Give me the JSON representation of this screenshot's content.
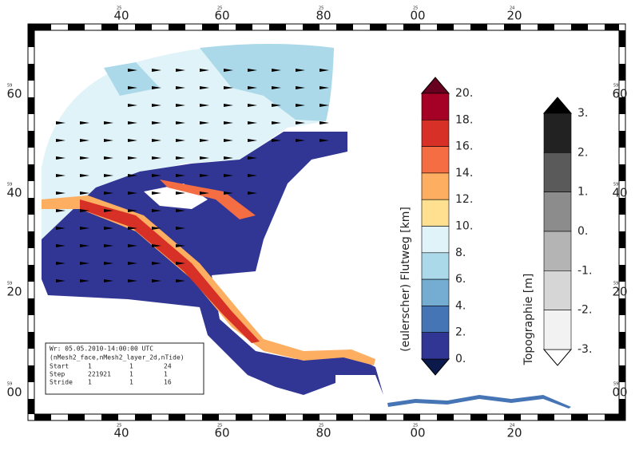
{
  "map": {
    "top_labels": [
      "40",
      "60",
      "80",
      "00",
      "20"
    ],
    "top_sublabels": [
      "25",
      "25",
      "25",
      "25",
      "24"
    ],
    "side_labels": [
      "60",
      "40",
      "20",
      "00"
    ],
    "side_sublabel": "59",
    "colorbar_flutweg": {
      "title": "(eulerscher) Flutweg [km]",
      "labels": [
        "20.",
        "18.",
        "16.",
        "14.",
        "12.",
        "10.",
        "8.",
        "6.",
        "4.",
        "2.",
        "0."
      ],
      "colors": [
        "#a50026",
        "#d73027",
        "#f46d43",
        "#fdae61",
        "#fee090",
        "#e0f3f8",
        "#abd9e9",
        "#74add1",
        "#4575b4",
        "#313695"
      ],
      "over_color": "#67001f",
      "under_color": "#0b1a4a"
    },
    "colorbar_topographie": {
      "title": "Topographie [m]",
      "labels": [
        "3.",
        "2.",
        "1.",
        "0.",
        "-1.",
        "-2.",
        "-3."
      ],
      "colors": [
        "#222222",
        "#5a5a5a",
        "#8c8c8c",
        "#b4b4b4",
        "#d6d6d6",
        "#f2f2f2"
      ],
      "over_color": "#000000",
      "under_color": "#ffffff"
    },
    "info_box": {
      "title": "Wr: 05.05.2010-14:00:00 UTC",
      "dims": "(nMesh2_face,nMesh2_layer_2d,nTide)",
      "rows": [
        [
          "Start",
          "1",
          "1",
          "24"
        ],
        [
          "Step",
          "221921",
          "1",
          "1"
        ],
        [
          "Stride",
          "1",
          "1",
          "16"
        ]
      ]
    }
  }
}
